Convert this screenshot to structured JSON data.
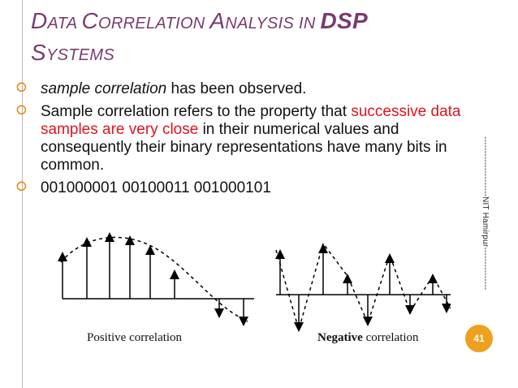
{
  "title": {
    "line1_cap1": "D",
    "line1_sc1": "ATA ",
    "line1_cap2": "C",
    "line1_sc2": "ORRELATION ",
    "line1_cap3": "A",
    "line1_sc3": "NALYSIS IN ",
    "line1_bold": "DSP",
    "line2_cap": "S",
    "line2_sc": "YSTEMS"
  },
  "bullets": {
    "b1_italic": "sample correlation",
    "b1_rest": " has been observed.",
    "b2_start": "Sample correlation refers to the property that ",
    "b2_red": "successive data samples are very close",
    "b2_end": " in their numerical values and consequently their binary representations have many bits in common.",
    "b3": "001000001 00100011 001000101"
  },
  "side_label": "---------------------NIT Hamirpur---------------",
  "page_number": "41",
  "captions": {
    "positive": "Positive correlation",
    "negative_bold": "Negative",
    "negative_rest": " correlation"
  },
  "colors": {
    "title": "#7a3b6e",
    "highlight": "#e0141e",
    "bullet": "#e08a0c",
    "badge": "#f0a020"
  }
}
